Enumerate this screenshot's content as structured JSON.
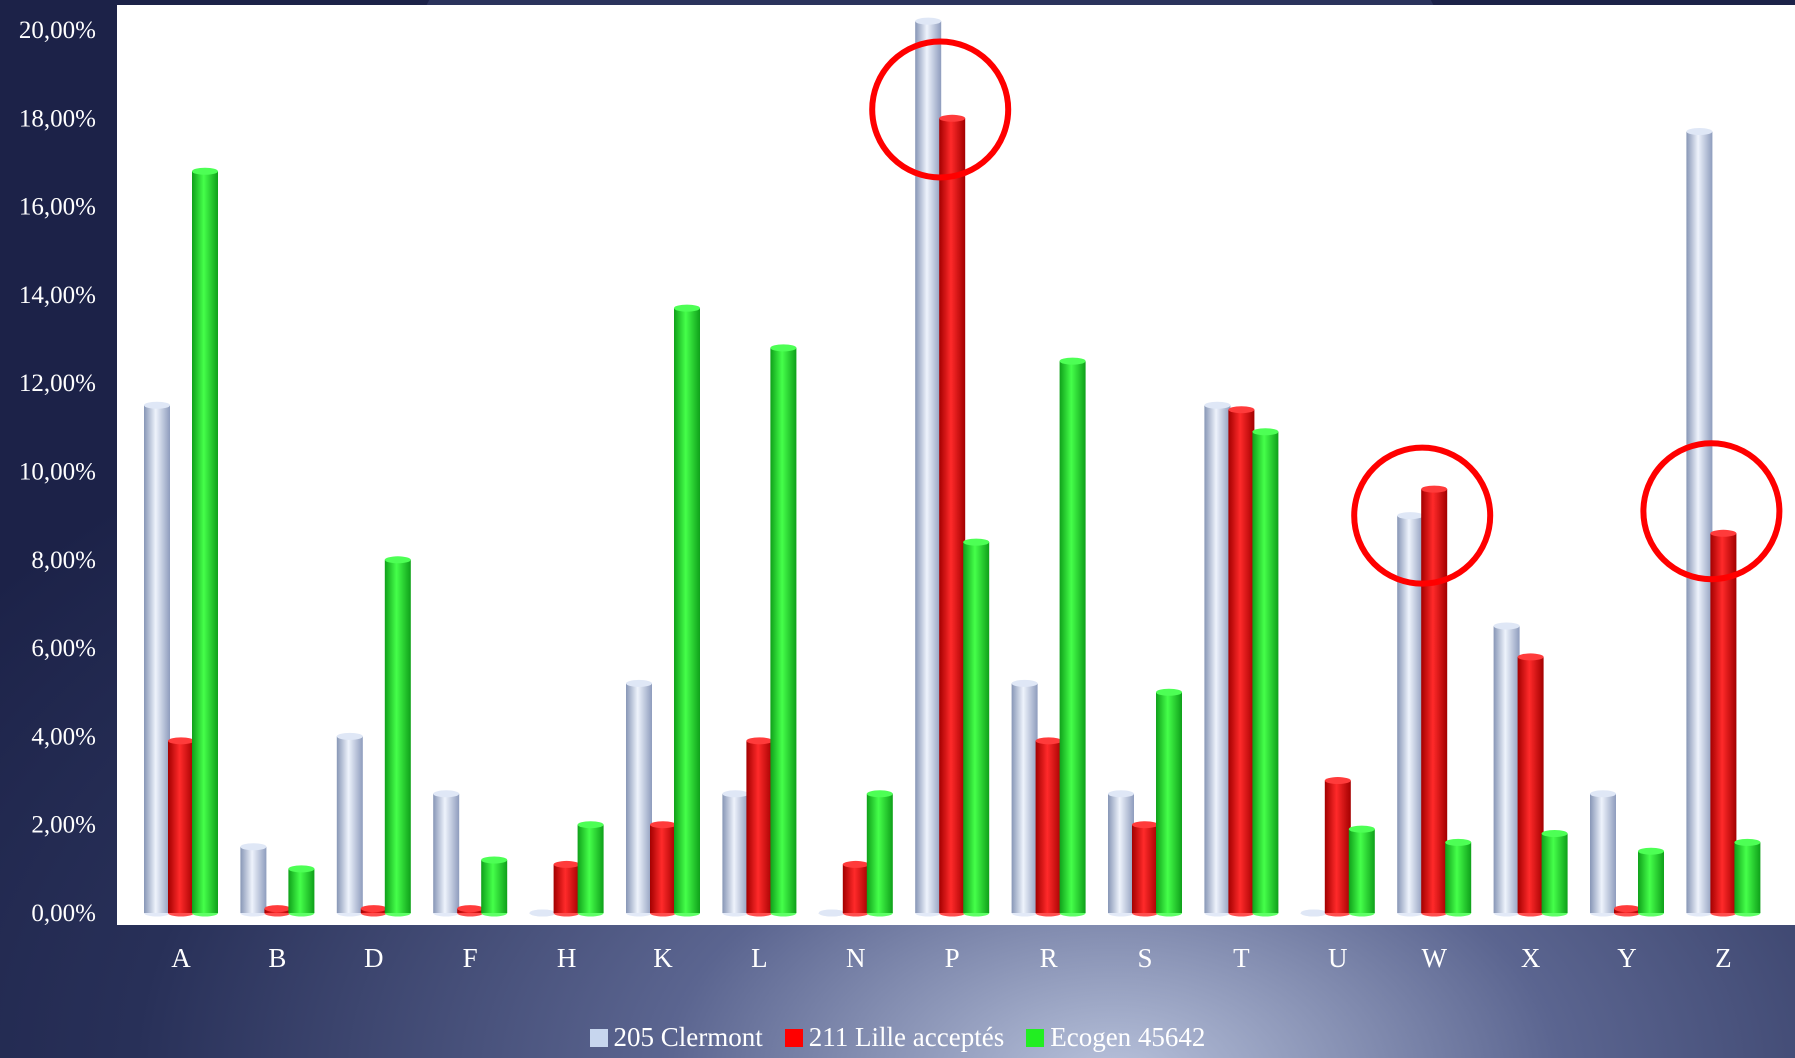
{
  "chart_data": {
    "type": "bar",
    "title": "",
    "xlabel": "",
    "ylabel": "",
    "categories": [
      "A",
      "B",
      "D",
      "F",
      "H",
      "K",
      "L",
      "N",
      "P",
      "R",
      "S",
      "T",
      "U",
      "W",
      "X",
      "Y",
      "Z"
    ],
    "series": [
      {
        "name": "205 Clermont",
        "color": "#c7d6ee",
        "values": [
          11.5,
          1.5,
          4.0,
          2.7,
          0.0,
          5.2,
          2.7,
          0.0,
          20.2,
          5.2,
          2.7,
          11.5,
          0.0,
          9.0,
          6.5,
          2.7,
          17.7
        ]
      },
      {
        "name": "211 Lille acceptés",
        "color": "#ff0000",
        "values": [
          3.9,
          0.1,
          0.1,
          0.1,
          1.1,
          2.0,
          3.9,
          1.1,
          18.0,
          3.9,
          2.0,
          11.4,
          3.0,
          9.6,
          5.8,
          0.1,
          8.6
        ]
      },
      {
        "name": "Ecogen 45642",
        "color": "#22ee22",
        "values": [
          16.8,
          1.0,
          8.0,
          1.2,
          2.0,
          13.7,
          12.8,
          2.7,
          8.4,
          12.5,
          5.0,
          10.9,
          1.9,
          1.6,
          1.8,
          1.4,
          1.6
        ]
      }
    ],
    "ylim": [
      0,
      20
    ],
    "yticks": [
      "0,00%",
      "2,00%",
      "4,00%",
      "6,00%",
      "8,00%",
      "10,00%",
      "12,00%",
      "14,00%",
      "16,00%",
      "18,00%",
      "20,00%"
    ],
    "grid": false,
    "legend_position": "bottom",
    "annotations": [
      {
        "shape": "circle",
        "category": "P",
        "value": 18.2,
        "color": "#ff0000"
      },
      {
        "shape": "circle",
        "category": "W",
        "value": 9.0,
        "color": "#ff0000"
      },
      {
        "shape": "circle",
        "category": "Z",
        "value": 9.1,
        "color": "#ff0000"
      }
    ]
  }
}
